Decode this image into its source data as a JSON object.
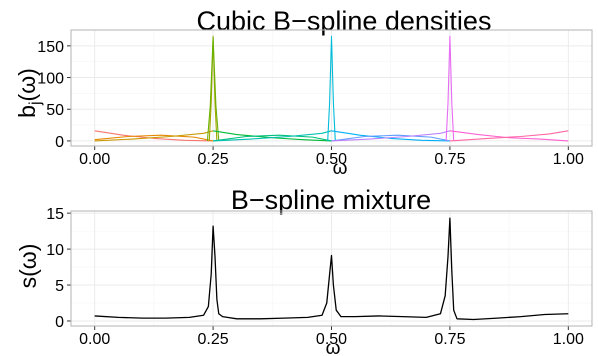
{
  "chart_data": [
    {
      "type": "line",
      "title": "Cubic B−spline densities",
      "xlabel": "ω",
      "ylabel_main": "b",
      "ylabel_sub": "j",
      "ylabel_rest": "(ω)",
      "xlim": [
        -0.05,
        1.05
      ],
      "ylim": [
        -8,
        175
      ],
      "x_ticks": [
        0.0,
        0.25,
        0.5,
        0.75,
        1.0
      ],
      "x_tick_labels": [
        "0.00",
        "0.25",
        "0.50",
        "0.75",
        "1.00"
      ],
      "y_ticks": [
        0,
        50,
        100,
        150
      ],
      "y_tick_labels": [
        "0",
        "50",
        "100",
        "150"
      ],
      "grid": true,
      "series": [
        {
          "color": "#F8766D",
          "x": [
            0,
            0.06,
            0.125,
            0.19,
            0.25
          ],
          "y": [
            16,
            9,
            4,
            1,
            0
          ]
        },
        {
          "color": "#E58700",
          "x": [
            0,
            0.07,
            0.14,
            0.21,
            0.25
          ],
          "y": [
            2,
            7,
            9,
            6,
            0
          ]
        },
        {
          "color": "#C99800",
          "x": [
            0,
            0.08,
            0.16,
            0.23,
            0.25
          ],
          "y": [
            0,
            3,
            7,
            12,
            16
          ]
        },
        {
          "color": "#A3A500",
          "x": [
            0.242,
            0.246,
            0.25,
            0.254,
            0.258
          ],
          "y": [
            0,
            60,
            165,
            60,
            0
          ]
        },
        {
          "color": "#6BB100",
          "x": [
            0.238,
            0.244,
            0.25,
            0.256,
            0.262
          ],
          "y": [
            0,
            55,
            163,
            55,
            0
          ]
        },
        {
          "color": "#00BA38",
          "x": [
            0.25,
            0.3,
            0.375,
            0.44,
            0.5
          ],
          "y": [
            16,
            10,
            5,
            2,
            0
          ]
        },
        {
          "color": "#00BF7D",
          "x": [
            0.25,
            0.32,
            0.39,
            0.46,
            0.5
          ],
          "y": [
            0,
            7,
            9,
            6,
            0
          ]
        },
        {
          "color": "#00C0AF",
          "x": [
            0.25,
            0.33,
            0.41,
            0.48,
            0.5
          ],
          "y": [
            0,
            3,
            7,
            12,
            16
          ]
        },
        {
          "color": "#00BCD8",
          "x": [
            0.492,
            0.496,
            0.5,
            0.504,
            0.508
          ],
          "y": [
            0,
            60,
            165,
            60,
            0
          ]
        },
        {
          "color": "#00B0F6",
          "x": [
            0.5,
            0.56,
            0.625,
            0.69,
            0.75
          ],
          "y": [
            16,
            9,
            4,
            1,
            0
          ]
        },
        {
          "color": "#619CFF",
          "x": [
            0.5,
            0.57,
            0.64,
            0.71,
            0.75
          ],
          "y": [
            0,
            7,
            9,
            6,
            0
          ]
        },
        {
          "color": "#B983FF",
          "x": [
            0.5,
            0.58,
            0.66,
            0.73,
            0.75
          ],
          "y": [
            0,
            3,
            7,
            12,
            16
          ]
        },
        {
          "color": "#E76BF3",
          "x": [
            0.742,
            0.746,
            0.75,
            0.754,
            0.758
          ],
          "y": [
            0,
            60,
            165,
            60,
            0
          ]
        },
        {
          "color": "#FD61D1",
          "x": [
            0.75,
            0.81,
            0.875,
            0.94,
            1.0
          ],
          "y": [
            16,
            10,
            5,
            3,
            0
          ]
        },
        {
          "color": "#FF67A4",
          "x": [
            0.75,
            0.83,
            0.9,
            0.96,
            1.0
          ],
          "y": [
            0,
            4,
            7,
            11,
            16
          ]
        }
      ]
    },
    {
      "type": "line",
      "title": "B−spline mixture",
      "xlabel": "ω",
      "ylabel": "s(ω)",
      "xlim": [
        -0.05,
        1.05
      ],
      "ylim": [
        -0.7,
        15.3
      ],
      "x_ticks": [
        0.0,
        0.25,
        0.5,
        0.75,
        1.0
      ],
      "x_tick_labels": [
        "0.00",
        "0.25",
        "0.50",
        "0.75",
        "1.00"
      ],
      "y_ticks": [
        0,
        5,
        10,
        15
      ],
      "y_tick_labels": [
        "0",
        "5",
        "10",
        "15"
      ],
      "grid": true,
      "series": [
        {
          "color": "#000000",
          "x": [
            0.0,
            0.05,
            0.1,
            0.15,
            0.2,
            0.23,
            0.24,
            0.246,
            0.25,
            0.254,
            0.258,
            0.262,
            0.27,
            0.3,
            0.35,
            0.4,
            0.45,
            0.48,
            0.49,
            0.496,
            0.5,
            0.504,
            0.51,
            0.52,
            0.55,
            0.6,
            0.65,
            0.7,
            0.73,
            0.74,
            0.746,
            0.75,
            0.754,
            0.758,
            0.765,
            0.8,
            0.85,
            0.9,
            0.95,
            1.0
          ],
          "y": [
            0.7,
            0.5,
            0.4,
            0.4,
            0.5,
            0.8,
            2.0,
            6.5,
            13.2,
            9.0,
            3.0,
            1.0,
            0.6,
            0.3,
            0.3,
            0.4,
            0.5,
            0.8,
            2.5,
            6.5,
            9.1,
            5.0,
            1.5,
            0.6,
            0.6,
            0.7,
            0.6,
            0.5,
            1.0,
            3.5,
            9.0,
            14.3,
            7.0,
            1.5,
            0.3,
            0.2,
            0.4,
            0.6,
            0.9,
            1.0
          ]
        }
      ]
    }
  ]
}
